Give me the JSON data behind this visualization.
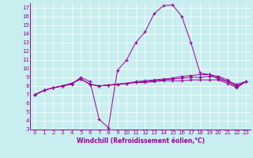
{
  "xlabel": "Windchill (Refroidissement éolien,°C)",
  "xlim": [
    -0.5,
    23.5
  ],
  "ylim": [
    3,
    17.5
  ],
  "xticks": [
    0,
    1,
    2,
    3,
    4,
    5,
    6,
    7,
    8,
    9,
    10,
    11,
    12,
    13,
    14,
    15,
    16,
    17,
    18,
    19,
    20,
    21,
    22,
    23
  ],
  "yticks": [
    3,
    4,
    5,
    6,
    7,
    8,
    9,
    10,
    11,
    12,
    13,
    14,
    15,
    16,
    17
  ],
  "bg_color": "#c8eef0",
  "grid_color": "#ffffff",
  "line_color": "#990099",
  "series1": [
    7.0,
    7.5,
    7.8,
    8.0,
    8.2,
    9.0,
    8.5,
    4.2,
    3.2,
    9.8,
    11.0,
    13.0,
    14.2,
    16.3,
    17.2,
    17.3,
    16.0,
    13.0,
    9.5,
    9.3,
    8.8,
    8.5,
    8.2,
    8.5
  ],
  "series2": [
    7.0,
    7.5,
    7.8,
    8.0,
    8.3,
    8.8,
    8.2,
    8.0,
    8.1,
    8.2,
    8.3,
    8.4,
    8.4,
    8.5,
    8.6,
    8.6,
    8.6,
    8.7,
    8.7,
    8.7,
    8.7,
    8.3,
    7.8,
    8.5
  ],
  "series3": [
    7.0,
    7.5,
    7.8,
    8.0,
    8.3,
    8.8,
    8.2,
    8.0,
    8.1,
    8.2,
    8.3,
    8.4,
    8.5,
    8.6,
    8.7,
    8.8,
    8.9,
    9.0,
    9.0,
    9.1,
    9.0,
    8.5,
    7.9,
    8.5
  ],
  "series4": [
    7.0,
    7.5,
    7.8,
    8.0,
    8.3,
    8.8,
    8.2,
    8.0,
    8.1,
    8.2,
    8.3,
    8.5,
    8.6,
    8.7,
    8.8,
    8.9,
    9.1,
    9.2,
    9.3,
    9.3,
    9.1,
    8.7,
    8.0,
    8.5
  ],
  "tick_fontsize": 5,
  "xlabel_fontsize": 5.5
}
